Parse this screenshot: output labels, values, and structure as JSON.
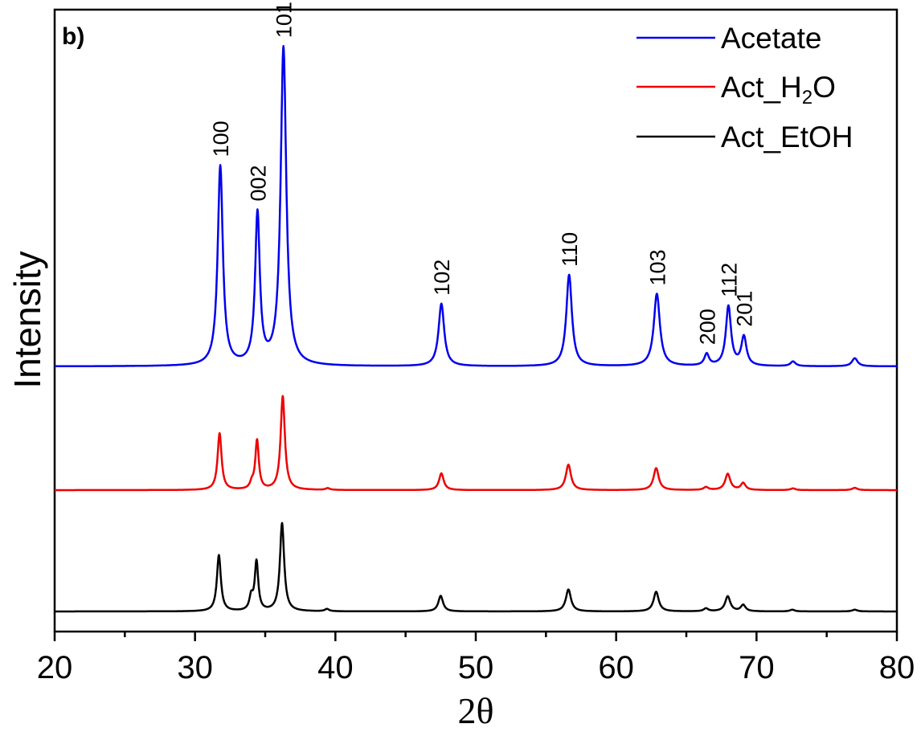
{
  "chart_data": {
    "type": "line",
    "panel_label": "b)",
    "xlabel": "2θ",
    "ylabel": "Intensity",
    "xlim": [
      20,
      80
    ],
    "xticks": [
      20,
      30,
      40,
      50,
      60,
      70,
      80
    ],
    "y_ticks_shown": false,
    "grid": false,
    "legend_position": "top-right",
    "series": [
      {
        "name": "Acetate",
        "color": "#0000ee",
        "baseline": 0.84,
        "peaks": [
          {
            "x": 31.8,
            "h": 3.45,
            "w": 0.22
          },
          {
            "x": 34.45,
            "h": 2.6,
            "w": 0.2
          },
          {
            "x": 36.3,
            "h": 5.5,
            "w": 0.24
          },
          {
            "x": 47.55,
            "h": 1.08,
            "w": 0.24
          },
          {
            "x": 56.65,
            "h": 1.58,
            "w": 0.24
          },
          {
            "x": 62.9,
            "h": 1.25,
            "w": 0.26
          },
          {
            "x": 66.45,
            "h": 0.2,
            "w": 0.2
          },
          {
            "x": 68.0,
            "h": 1.03,
            "w": 0.22
          },
          {
            "x": 69.1,
            "h": 0.5,
            "w": 0.22
          },
          {
            "x": 72.6,
            "h": 0.08,
            "w": 0.22
          },
          {
            "x": 77.0,
            "h": 0.14,
            "w": 0.24
          }
        ]
      },
      {
        "name": "Act_H2O",
        "color": "#ee0000",
        "baseline": 0.74,
        "peaks": [
          {
            "x": 31.75,
            "h": 0.98,
            "w": 0.17
          },
          {
            "x": 34.05,
            "h": 0.1,
            "w": 0.15
          },
          {
            "x": 34.42,
            "h": 0.85,
            "w": 0.15
          },
          {
            "x": 36.25,
            "h": 1.62,
            "w": 0.18
          },
          {
            "x": 39.45,
            "h": 0.03,
            "w": 0.18
          },
          {
            "x": 47.55,
            "h": 0.29,
            "w": 0.2
          },
          {
            "x": 56.6,
            "h": 0.44,
            "w": 0.22
          },
          {
            "x": 62.85,
            "h": 0.38,
            "w": 0.22
          },
          {
            "x": 66.4,
            "h": 0.05,
            "w": 0.2
          },
          {
            "x": 67.95,
            "h": 0.28,
            "w": 0.22
          },
          {
            "x": 69.05,
            "h": 0.12,
            "w": 0.2
          },
          {
            "x": 72.6,
            "h": 0.03,
            "w": 0.2
          },
          {
            "x": 77.0,
            "h": 0.04,
            "w": 0.22
          }
        ]
      },
      {
        "name": "Act_EtOH",
        "color": "#000000",
        "baseline": 0.02,
        "peaks": [
          {
            "x": 31.7,
            "h": 0.97,
            "w": 0.17
          },
          {
            "x": 34.0,
            "h": 0.23,
            "w": 0.15
          },
          {
            "x": 34.38,
            "h": 0.85,
            "w": 0.15
          },
          {
            "x": 36.2,
            "h": 1.52,
            "w": 0.18
          },
          {
            "x": 39.4,
            "h": 0.04,
            "w": 0.18
          },
          {
            "x": 47.5,
            "h": 0.27,
            "w": 0.2
          },
          {
            "x": 56.6,
            "h": 0.38,
            "w": 0.22
          },
          {
            "x": 62.85,
            "h": 0.34,
            "w": 0.22
          },
          {
            "x": 66.4,
            "h": 0.05,
            "w": 0.2
          },
          {
            "x": 67.95,
            "h": 0.26,
            "w": 0.22
          },
          {
            "x": 69.05,
            "h": 0.11,
            "w": 0.2
          },
          {
            "x": 72.55,
            "h": 0.03,
            "w": 0.2
          },
          {
            "x": 77.0,
            "h": 0.03,
            "w": 0.22
          }
        ]
      }
    ],
    "annotations": [
      {
        "text": "100",
        "x": 31.8
      },
      {
        "text": "002",
        "x": 34.45
      },
      {
        "text": "101",
        "x": 36.3
      },
      {
        "text": "102",
        "x": 47.55
      },
      {
        "text": "110",
        "x": 56.65
      },
      {
        "text": "103",
        "x": 62.9
      },
      {
        "text": "200",
        "x": 66.45
      },
      {
        "text": "112",
        "x": 68.0
      },
      {
        "text": "201",
        "x": 69.1
      }
    ],
    "legend": [
      {
        "label": "Acetate",
        "color": "#0000ee"
      },
      {
        "label": "Act_H",
        "sub": "2",
        "label_after": "O",
        "color": "#ee0000"
      },
      {
        "label": "Act_EtOH",
        "color": "#000000"
      }
    ]
  }
}
